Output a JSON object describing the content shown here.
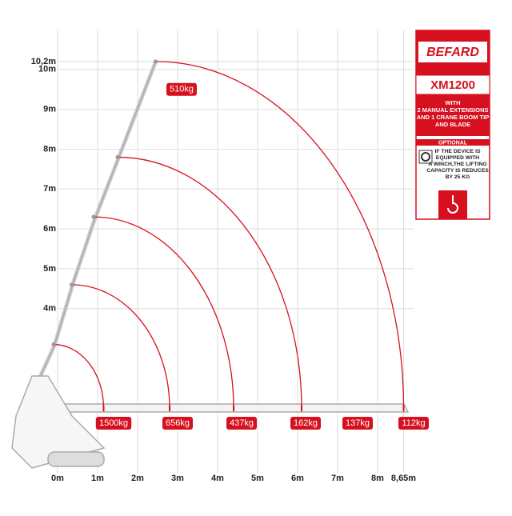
{
  "chart_data": {
    "type": "load_chart",
    "xticks": [
      {
        "value": 0,
        "label": "0m"
      },
      {
        "value": 1,
        "label": "1m"
      },
      {
        "value": 2,
        "label": "2m"
      },
      {
        "value": 3,
        "label": "3m"
      },
      {
        "value": 4,
        "label": "4m"
      },
      {
        "value": 5,
        "label": "5m"
      },
      {
        "value": 6,
        "label": "6m"
      },
      {
        "value": 7,
        "label": "7m"
      },
      {
        "value": 8,
        "label": "8m"
      },
      {
        "value": 8.65,
        "label": "8,65m"
      }
    ],
    "yticks": [
      {
        "value": 4,
        "label": "4m"
      },
      {
        "value": 5,
        "label": "5m"
      },
      {
        "value": 6,
        "label": "6m"
      },
      {
        "value": 7,
        "label": "7m"
      },
      {
        "value": 8,
        "label": "8m"
      },
      {
        "value": 9,
        "label": "9m"
      },
      {
        "value": 10,
        "label": "10m"
      },
      {
        "value": 10.2,
        "label": "10,2m"
      }
    ],
    "xlim": [
      0,
      8.9
    ],
    "ylim": [
      -0.1,
      11
    ],
    "grid": true,
    "color": "#d6101e",
    "arcs": {
      "top_x": [
        -0.1,
        0.35,
        0.9,
        1.5,
        2.45
      ],
      "top_y": [
        3.1,
        4.6,
        6.3,
        7.8,
        10.2
      ],
      "end_x": [
        1.15,
        2.8,
        4.4,
        6.1,
        8.65
      ],
      "end_y": [
        1.5,
        1.5,
        1.5,
        1.5,
        1.5
      ]
    },
    "ground_loads": {
      "x": [
        1.4,
        3.0,
        4.6,
        6.2,
        7.5,
        8.9
      ],
      "values": [
        1500,
        656,
        437,
        162,
        137,
        112
      ],
      "value_labels": [
        "1500kg",
        "656kg",
        "437kg",
        "162kg",
        "137kg",
        "112kg"
      ]
    },
    "top_load": {
      "x": 3.1,
      "y": 9.5,
      "value": 510,
      "value_label": "510kg"
    }
  },
  "panel": {
    "brand": "BEFARD",
    "model": "XM1200",
    "description": "WITH\n2 MANUAL EXTENSIONS\nAND 1 CRANE BOOM TIP\nAND BLADE",
    "optional": "OPTIONAL",
    "note": "IF THE DEVICE IS\nEQUIPPED WITH\nA WINCH,THE LIFTING\nCAPACITY IS REDUCES\nBY 25 KG"
  }
}
